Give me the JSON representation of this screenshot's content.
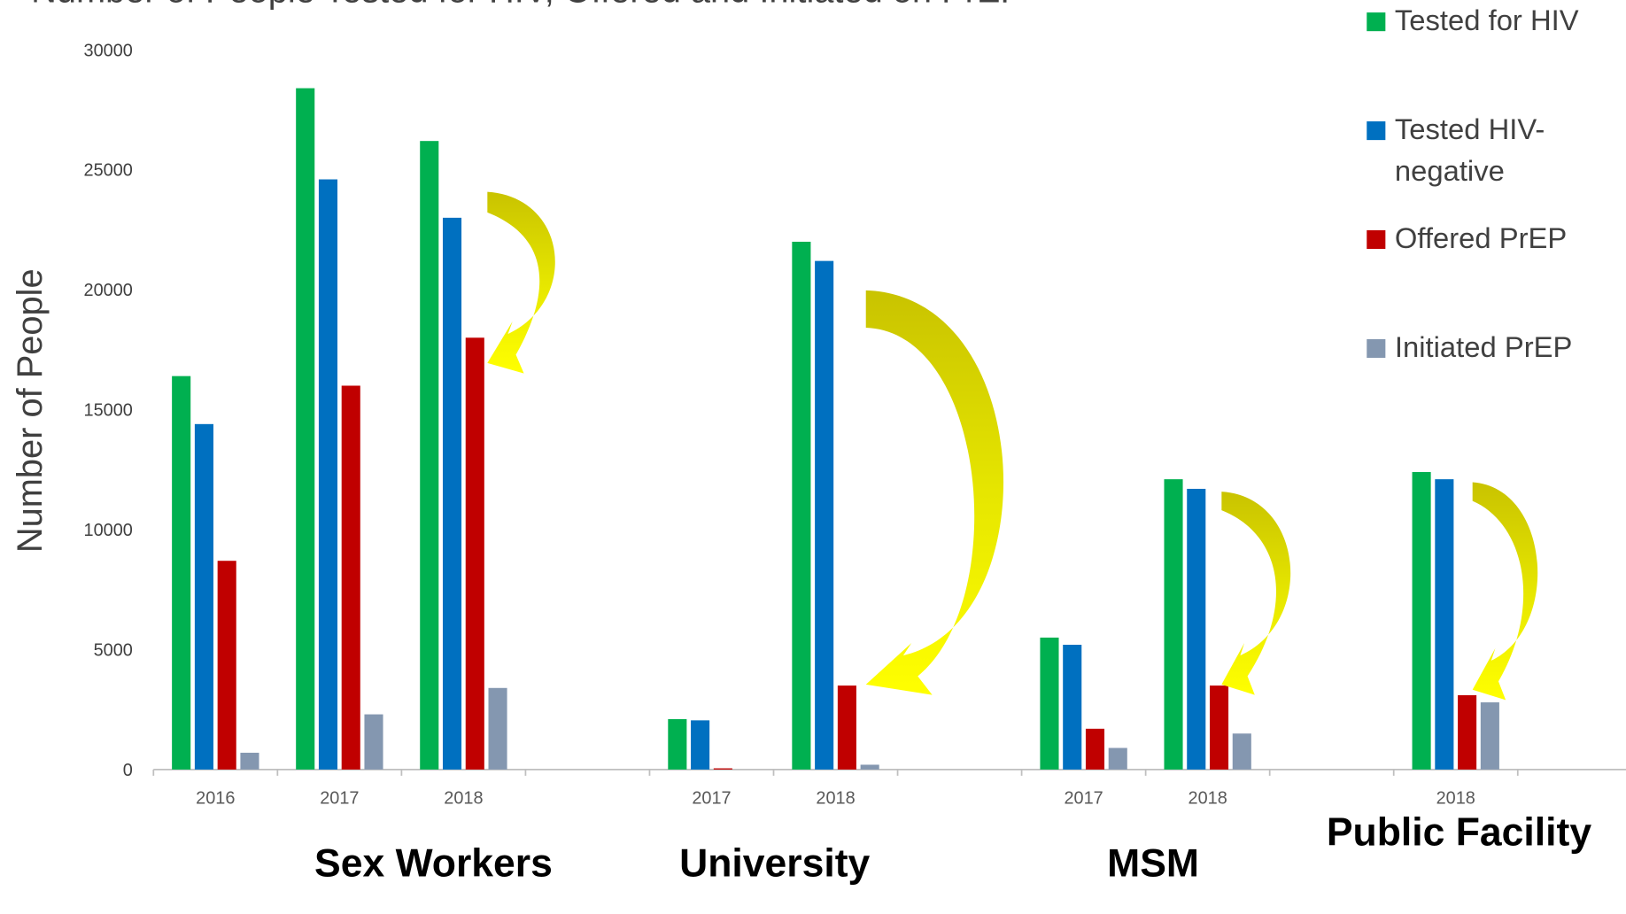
{
  "chart_data": {
    "type": "bar",
    "title": "Number of People Tested for HIV, Offered and Initiated on PrEP",
    "y_label": "Number of People",
    "categories": [
      "2016",
      "2017",
      "2018",
      null,
      "2017",
      "2018",
      null,
      "2017",
      "2018",
      null,
      "2018",
      null
    ],
    "group_labels": [
      "Sex Workers",
      "University",
      "MSM",
      "Public Facility"
    ],
    "series": [
      {
        "name": "Tested for HIV",
        "color": "#00b050",
        "values": [
          16400,
          28400,
          26200,
          null,
          2100,
          22000,
          null,
          5500,
          12100,
          null,
          12400,
          null
        ]
      },
      {
        "name": "Tested HIV-negative",
        "color": "#0070c0",
        "values": [
          14400,
          24600,
          23000,
          null,
          2050,
          21200,
          null,
          5200,
          11700,
          null,
          12100,
          null
        ]
      },
      {
        "name": "Offered PrEP",
        "color": "#c00000",
        "values": [
          8700,
          16000,
          18000,
          null,
          50,
          3500,
          null,
          1700,
          3500,
          null,
          3100,
          null
        ]
      },
      {
        "name": "Initiated PrEP",
        "color": "#8497b0",
        "values": [
          700,
          2300,
          3400,
          null,
          0,
          200,
          null,
          900,
          1500,
          null,
          2800,
          null
        ]
      }
    ],
    "ylim": [
      0,
      30000
    ],
    "yticks": [
      0,
      5000,
      10000,
      15000,
      20000,
      25000,
      30000
    ],
    "grid": false,
    "legend": "right"
  }
}
